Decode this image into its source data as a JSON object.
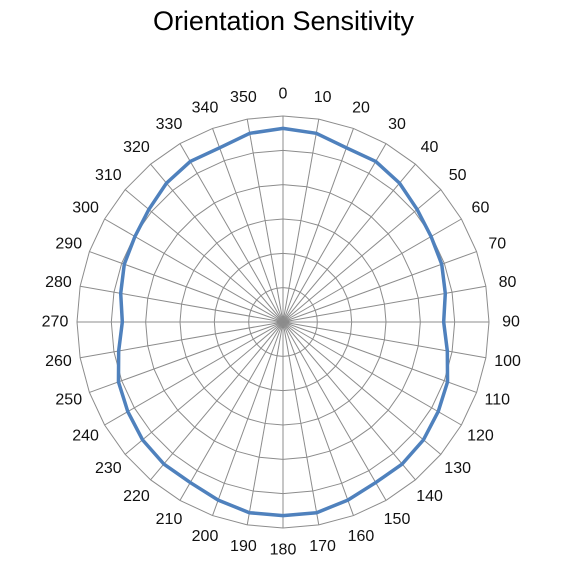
{
  "chart_data": {
    "type": "radar",
    "title": "Orientation Sensitivity",
    "categories": [
      "0",
      "10",
      "20",
      "30",
      "40",
      "50",
      "60",
      "70",
      "80",
      "90",
      "100",
      "110",
      "120",
      "130",
      "140",
      "150",
      "160",
      "170",
      "180",
      "190",
      "200",
      "210",
      "220",
      "230",
      "240",
      "250",
      "260",
      "270",
      "280",
      "290",
      "300",
      "310",
      "320",
      "330",
      "340",
      "350"
    ],
    "series": [
      {
        "values": [
          0.94,
          0.93,
          0.9,
          0.9,
          0.88,
          0.85,
          0.83,
          0.82,
          0.8,
          0.78,
          0.81,
          0.85,
          0.87,
          0.89,
          0.9,
          0.9,
          0.92,
          0.94,
          0.94,
          0.94,
          0.92,
          0.9,
          0.9,
          0.89,
          0.87,
          0.85,
          0.81,
          0.78,
          0.8,
          0.82,
          0.83,
          0.85,
          0.88,
          0.9,
          0.9,
          0.93
        ],
        "color": "#4F81BD"
      }
    ],
    "rlim": [
      0,
      1
    ],
    "grid": true,
    "legend": "none"
  }
}
